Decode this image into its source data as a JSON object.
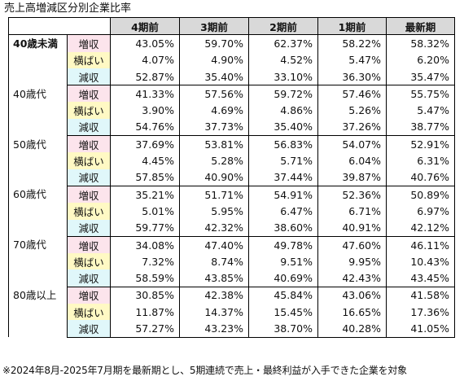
{
  "title": "売上高増減区分別企業比率",
  "columns": [
    "4期前",
    "3期前",
    "2期前",
    "1期前",
    "最新期"
  ],
  "groups": [
    {
      "age": "40歳未満",
      "rows": [
        {
          "type": "増収",
          "values": [
            "43.05%",
            "59.70%",
            "62.37%",
            "58.22%",
            "58.32%"
          ]
        },
        {
          "type": "横ばい",
          "values": [
            "4.07%",
            "4.90%",
            "4.52%",
            "5.47%",
            "6.20%"
          ]
        },
        {
          "type": "減収",
          "values": [
            "52.87%",
            "35.40%",
            "33.10%",
            "36.30%",
            "35.47%"
          ]
        }
      ]
    },
    {
      "age": "40歳代",
      "rows": [
        {
          "type": "増収",
          "values": [
            "41.33%",
            "57.56%",
            "59.72%",
            "57.46%",
            "55.75%"
          ]
        },
        {
          "type": "横ばい",
          "values": [
            "3.90%",
            "4.69%",
            "4.86%",
            "5.26%",
            "5.47%"
          ]
        },
        {
          "type": "減収",
          "values": [
            "54.76%",
            "37.73%",
            "35.40%",
            "37.26%",
            "38.77%"
          ]
        }
      ]
    },
    {
      "age": "50歳代",
      "rows": [
        {
          "type": "増収",
          "values": [
            "37.69%",
            "53.81%",
            "56.83%",
            "54.07%",
            "52.91%"
          ]
        },
        {
          "type": "横ばい",
          "values": [
            "4.45%",
            "5.28%",
            "5.71%",
            "6.04%",
            "6.31%"
          ]
        },
        {
          "type": "減収",
          "values": [
            "57.85%",
            "40.90%",
            "37.44%",
            "39.87%",
            "40.76%"
          ]
        }
      ]
    },
    {
      "age": "60歳代",
      "rows": [
        {
          "type": "増収",
          "values": [
            "35.21%",
            "51.71%",
            "54.91%",
            "52.36%",
            "50.89%"
          ]
        },
        {
          "type": "横ばい",
          "values": [
            "5.01%",
            "5.95%",
            "6.47%",
            "6.71%",
            "6.97%"
          ]
        },
        {
          "type": "減収",
          "values": [
            "59.77%",
            "42.32%",
            "38.60%",
            "40.91%",
            "42.12%"
          ]
        }
      ]
    },
    {
      "age": "70歳代",
      "rows": [
        {
          "type": "増収",
          "values": [
            "34.08%",
            "47.40%",
            "49.78%",
            "47.60%",
            "46.11%"
          ]
        },
        {
          "type": "横ばい",
          "values": [
            "7.32%",
            "8.74%",
            "9.51%",
            "9.95%",
            "10.43%"
          ]
        },
        {
          "type": "減収",
          "values": [
            "58.59%",
            "43.85%",
            "40.69%",
            "42.43%",
            "43.45%"
          ]
        }
      ]
    },
    {
      "age": "80歳以上",
      "rows": [
        {
          "type": "増収",
          "values": [
            "30.85%",
            "42.38%",
            "45.84%",
            "43.06%",
            "41.58%"
          ]
        },
        {
          "type": "横ばい",
          "values": [
            "11.87%",
            "14.37%",
            "15.45%",
            "16.65%",
            "17.36%"
          ]
        },
        {
          "type": "減収",
          "values": [
            "57.27%",
            "43.23%",
            "38.70%",
            "40.28%",
            "41.05%"
          ]
        }
      ]
    }
  ],
  "note": "※2024年8月-2025年7月期を最新期とし、5期連続で売上・最終利益が入手できた企業を対象",
  "colors": {
    "header_bg": "#d9d9d9",
    "increase_bg": "#fce4ec",
    "flat_bg": "#fff9c4",
    "decrease_bg": "#e0f7fa"
  }
}
